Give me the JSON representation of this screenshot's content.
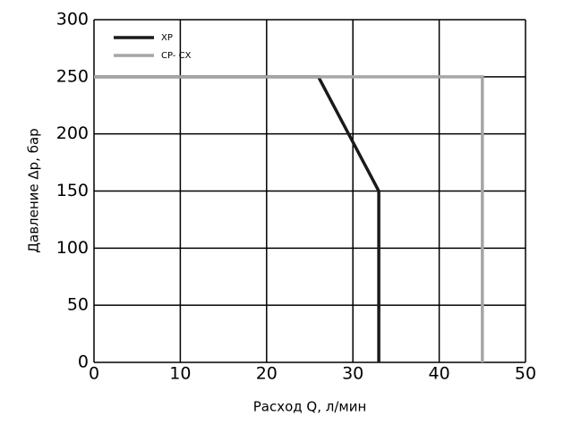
{
  "chart_data": {
    "type": "line",
    "xlabel": "Расход Q, л/мин",
    "ylabel": "Давление Δр, бар",
    "xlim": [
      0,
      50
    ],
    "xticks": [
      0,
      10,
      20,
      30,
      40,
      50
    ],
    "ylim": [
      0,
      300
    ],
    "yticks": [
      0,
      50,
      100,
      150,
      200,
      250,
      300
    ],
    "grid": true,
    "legend": "upper left",
    "series": [
      {
        "name": "XP",
        "color": "#1a1a1a",
        "x": [
          0,
          26,
          33,
          33
        ],
        "values": [
          250,
          250,
          150,
          0
        ]
      },
      {
        "name": "CP- CX",
        "color": "#a6a6a6",
        "x": [
          0,
          45,
          45
        ],
        "values": [
          250,
          250,
          0
        ]
      }
    ]
  }
}
